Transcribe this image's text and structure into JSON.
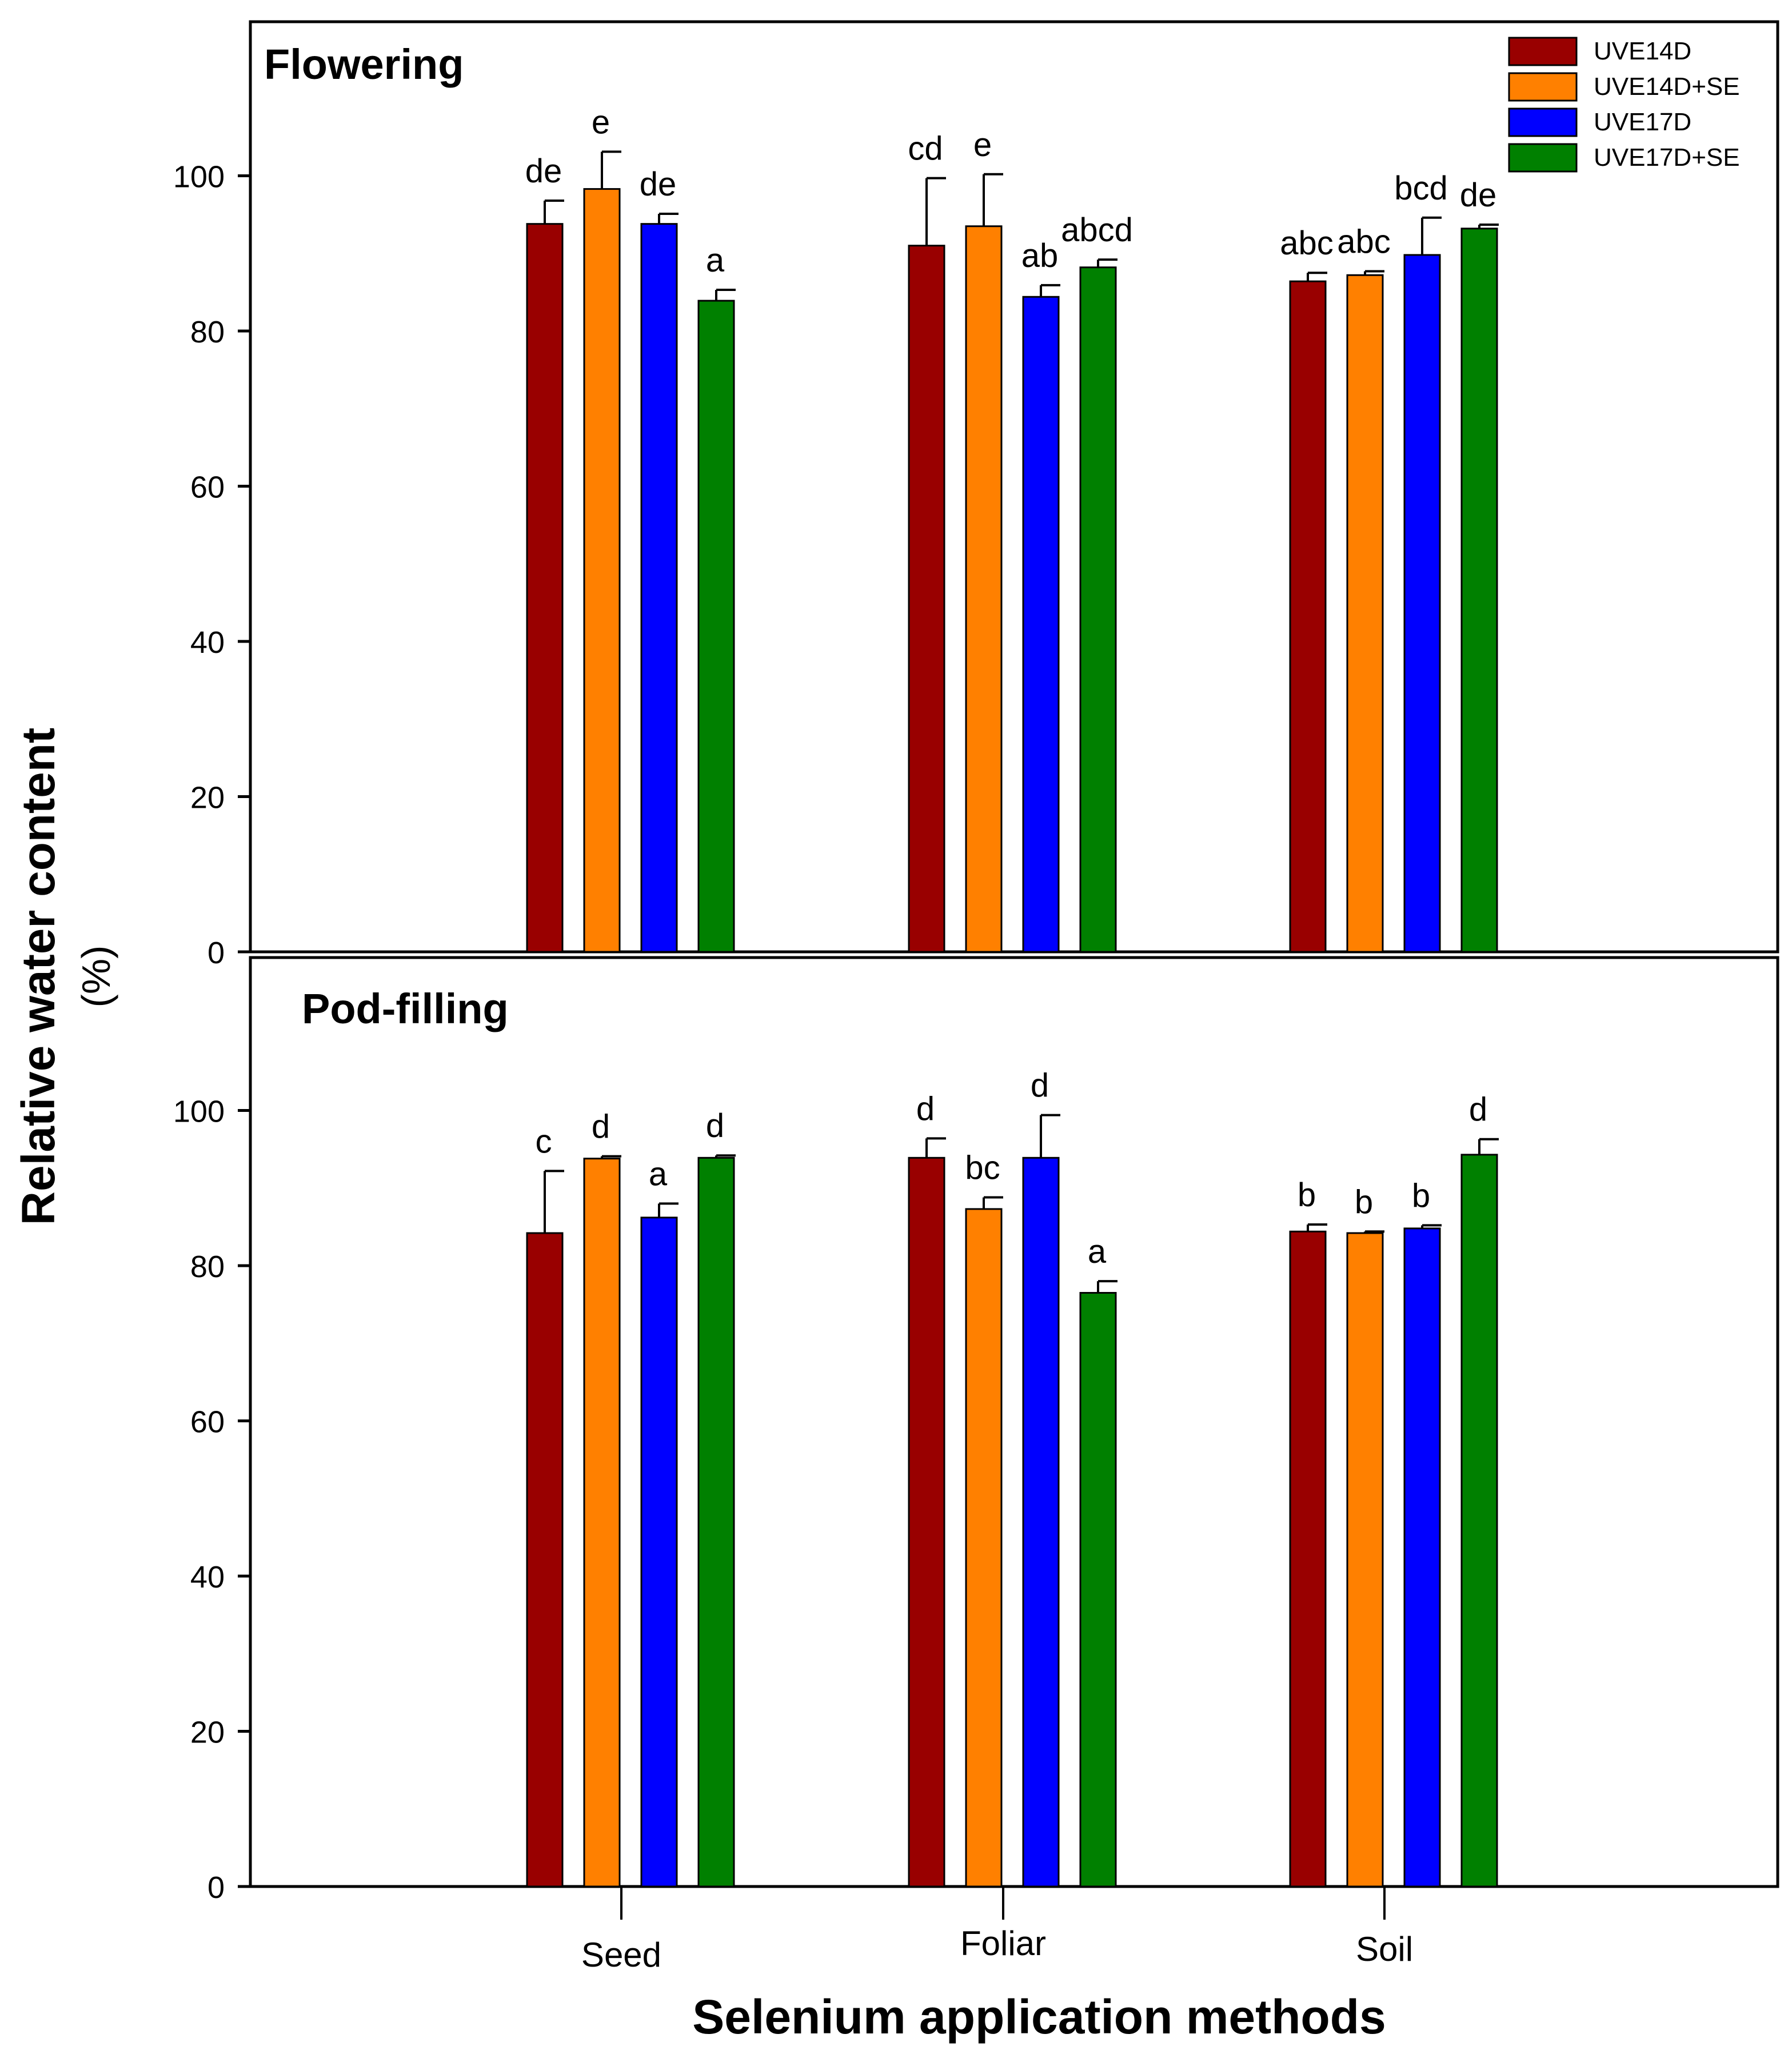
{
  "figure": {
    "ylabel_line1": "Relative water content",
    "ylabel_line2": "(%)",
    "xlabel": "Selenium application methods"
  },
  "legend": {
    "placement": "top-right",
    "items": [
      {
        "label": "UVE14D",
        "color": "#990000"
      },
      {
        "label": "UVE14D+SE",
        "color": "#FF8000"
      },
      {
        "label": "UVE17D",
        "color": "#0000FF"
      },
      {
        "label": "UVE17D+SE",
        "color": "#008000"
      }
    ]
  },
  "chart_data": [
    {
      "type": "bar",
      "title": "Flowering",
      "categories": [
        "Seed",
        "Foliar",
        "Soil"
      ],
      "ylim": [
        0,
        120
      ],
      "yticks": [
        0,
        20,
        40,
        60,
        80,
        100
      ],
      "grid": false,
      "series": [
        {
          "name": "UVE14D",
          "values": [
            93.8,
            91.0,
            86.4
          ],
          "errors": [
            3.0,
            8.7,
            1.1
          ],
          "letters": [
            "de",
            "cd",
            "abc"
          ]
        },
        {
          "name": "UVE14D+SE",
          "values": [
            98.3,
            93.5,
            87.2
          ],
          "errors": [
            4.8,
            6.7,
            0.5
          ],
          "letters": [
            "e",
            "e",
            "abc"
          ]
        },
        {
          "name": "UVE17D",
          "values": [
            93.8,
            84.4,
            89.8
          ],
          "errors": [
            1.3,
            1.5,
            4.8
          ],
          "letters": [
            "de",
            "ab",
            "bcd"
          ]
        },
        {
          "name": "UVE17D+SE",
          "values": [
            83.9,
            88.2,
            93.2
          ],
          "errors": [
            1.4,
            1.0,
            0.5
          ],
          "letters": [
            "a",
            "abcd",
            "de"
          ]
        }
      ]
    },
    {
      "type": "bar",
      "title": "Pod-filling",
      "categories": [
        "Seed",
        "Foliar",
        "Soil"
      ],
      "ylim": [
        0,
        120
      ],
      "yticks": [
        0,
        20,
        40,
        60,
        80,
        100
      ],
      "grid": false,
      "series": [
        {
          "name": "UVE14D",
          "values": [
            84.2,
            93.9,
            84.4
          ],
          "errors": [
            8.0,
            2.5,
            0.9
          ],
          "letters": [
            "c",
            "d",
            "b"
          ]
        },
        {
          "name": "UVE14D+SE",
          "values": [
            93.8,
            87.3,
            84.2
          ],
          "errors": [
            0.3,
            1.5,
            0.2
          ],
          "letters": [
            "d",
            "bc",
            "b"
          ]
        },
        {
          "name": "UVE17D",
          "values": [
            86.2,
            93.9,
            84.8
          ],
          "errors": [
            1.8,
            5.5,
            0.4
          ],
          "letters": [
            "a",
            "d",
            "b"
          ]
        },
        {
          "name": "UVE17D+SE",
          "values": [
            93.9,
            76.5,
            94.3
          ],
          "errors": [
            0.3,
            1.5,
            2.0
          ],
          "letters": [
            "d",
            "a",
            "d"
          ]
        }
      ]
    }
  ]
}
